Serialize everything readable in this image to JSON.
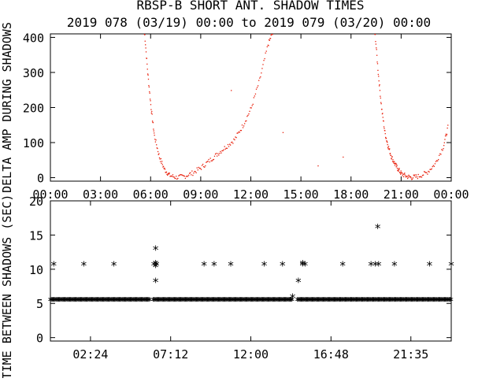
{
  "title_line1": "RBSP-B SHORT ANT. SHADOW TIMES",
  "title_line2": "2019 078 (03/19) 00:00 to 2019 079 (03/20) 00:00",
  "colors": {
    "axes": "#000000",
    "scatter": "#e8200c",
    "background": "#ffffff"
  },
  "chart_data": [
    {
      "type": "scatter",
      "ylabel": "DELTA AMP DURING SHADOWS",
      "xlim": [
        "00:00",
        "24:00"
      ],
      "ylim": [
        -10,
        410
      ],
      "grid": false,
      "x_tick_labels": [
        "00:00",
        "03:00",
        "06:00",
        "09:00",
        "12:00",
        "15:00",
        "18:00",
        "21:00",
        "00:00"
      ],
      "y_ticks": [
        0,
        100,
        200,
        300,
        400
      ],
      "marker_color": "#e8200c",
      "series": [
        {
          "values_hours_vs_amp": [
            [
              5.6,
              420
            ],
            [
              5.8,
              300
            ],
            [
              6.0,
              200
            ],
            [
              6.2,
              120
            ],
            [
              6.5,
              60
            ],
            [
              6.8,
              25
            ],
            [
              7.1,
              8
            ],
            [
              7.5,
              2
            ],
            [
              8.0,
              5
            ],
            [
              8.5,
              15
            ],
            [
              9.0,
              30
            ],
            [
              9.5,
              50
            ],
            [
              10.0,
              70
            ],
            [
              10.5,
              90
            ],
            [
              11.0,
              110
            ],
            [
              11.5,
              150
            ],
            [
              12.0,
              200
            ],
            [
              12.5,
              280
            ],
            [
              13.0,
              380
            ],
            [
              13.3,
              420
            ],
            [
              19.4,
              420
            ],
            [
              19.6,
              300
            ],
            [
              19.8,
              200
            ],
            [
              20.0,
              130
            ],
            [
              20.2,
              90
            ],
            [
              20.4,
              60
            ],
            [
              20.6,
              40
            ],
            [
              20.8,
              25
            ],
            [
              21.0,
              12
            ],
            [
              21.3,
              5
            ],
            [
              21.6,
              2
            ],
            [
              22.0,
              5
            ],
            [
              22.5,
              15
            ],
            [
              23.0,
              40
            ],
            [
              23.5,
              90
            ],
            [
              23.8,
              150
            ],
            [
              10.8,
              250
            ],
            [
              13.9,
              130
            ],
            [
              16.0,
              35
            ],
            [
              17.5,
              60
            ]
          ]
        }
      ]
    },
    {
      "type": "scatter",
      "ylabel": "TIME BETWEEN SHADOWS (SEC)",
      "ylim": [
        -0.5,
        20
      ],
      "grid": false,
      "x_tick_labels": [
        "02:24",
        "07:12",
        "12:00",
        "16:48",
        "21:35"
      ],
      "y_ticks": [
        0,
        5,
        10,
        15,
        20
      ],
      "marker": "asterisk",
      "baseline_value": 5.4,
      "baseline_gaps_hours": [
        [
          5.95,
          6.15
        ],
        [
          14.5,
          14.75
        ]
      ],
      "points_hours_vs_sec": [
        [
          0.2,
          10.6
        ],
        [
          2.0,
          10.6
        ],
        [
          3.8,
          10.6
        ],
        [
          6.2,
          10.6
        ],
        [
          6.35,
          10.6
        ],
        [
          6.3,
          10.4
        ],
        [
          6.3,
          10.8
        ],
        [
          6.3,
          12.9
        ],
        [
          6.3,
          8.2
        ],
        [
          9.2,
          10.6
        ],
        [
          9.8,
          10.6
        ],
        [
          10.8,
          10.6
        ],
        [
          12.8,
          10.6
        ],
        [
          13.9,
          10.6
        ],
        [
          14.5,
          5.9
        ],
        [
          14.85,
          8.2
        ],
        [
          15.1,
          10.6
        ],
        [
          15.25,
          10.6
        ],
        [
          15.1,
          10.8
        ],
        [
          17.5,
          10.6
        ],
        [
          19.2,
          10.6
        ],
        [
          19.45,
          10.6
        ],
        [
          19.6,
          16.1
        ],
        [
          19.65,
          10.6
        ],
        [
          20.6,
          10.6
        ],
        [
          22.7,
          10.6
        ],
        [
          24.0,
          10.6
        ]
      ]
    }
  ]
}
